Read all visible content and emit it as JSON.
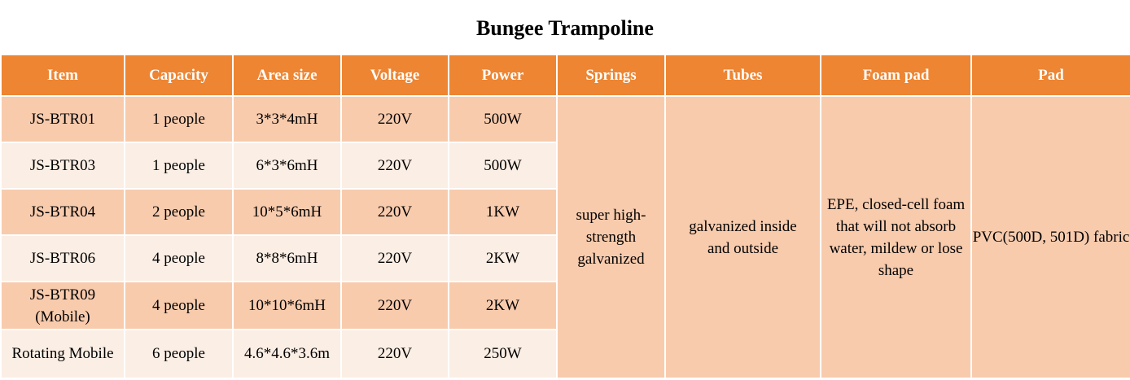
{
  "title": "Bungee Trampoline",
  "headers": [
    "Item",
    "Capacity",
    "Area size",
    "Voltage",
    "Power",
    "Springs",
    "Tubes",
    "Foam pad",
    "Pad"
  ],
  "rows": [
    {
      "item": "JS-BTR01",
      "capacity": "1 people",
      "area": "3*3*4mH",
      "voltage": "220V",
      "power": "500W"
    },
    {
      "item": "JS-BTR03",
      "capacity": "1 people",
      "area": "6*3*6mH",
      "voltage": "220V",
      "power": "500W"
    },
    {
      "item": "JS-BTR04",
      "capacity": "2 people",
      "area": "10*5*6mH",
      "voltage": "220V",
      "power": "1KW"
    },
    {
      "item": "JS-BTR06",
      "capacity": "4 people",
      "area": "8*8*6mH",
      "voltage": "220V",
      "power": "2KW"
    },
    {
      "item": "JS-BTR09 (Mobile)",
      "capacity": "4 people",
      "area": "10*10*6mH",
      "voltage": "220V",
      "power": "2KW"
    },
    {
      "item": "Rotating Mobile",
      "capacity": "6 people",
      "area": "4.6*4.6*3.6m",
      "voltage": "220V",
      "power": "250W"
    }
  ],
  "shared": {
    "springs": "super high-strength galvanized",
    "tubes": "galvanized inside and outside",
    "foam_pad": "EPE, closed-cell foam that will not absorb water, mildew or lose shape",
    "pad": "PVC(500D, 501D) fabric"
  },
  "colors": {
    "header_bg": "#ed8532",
    "row_dark": "#f8cbad",
    "row_light": "#fbeee4"
  }
}
